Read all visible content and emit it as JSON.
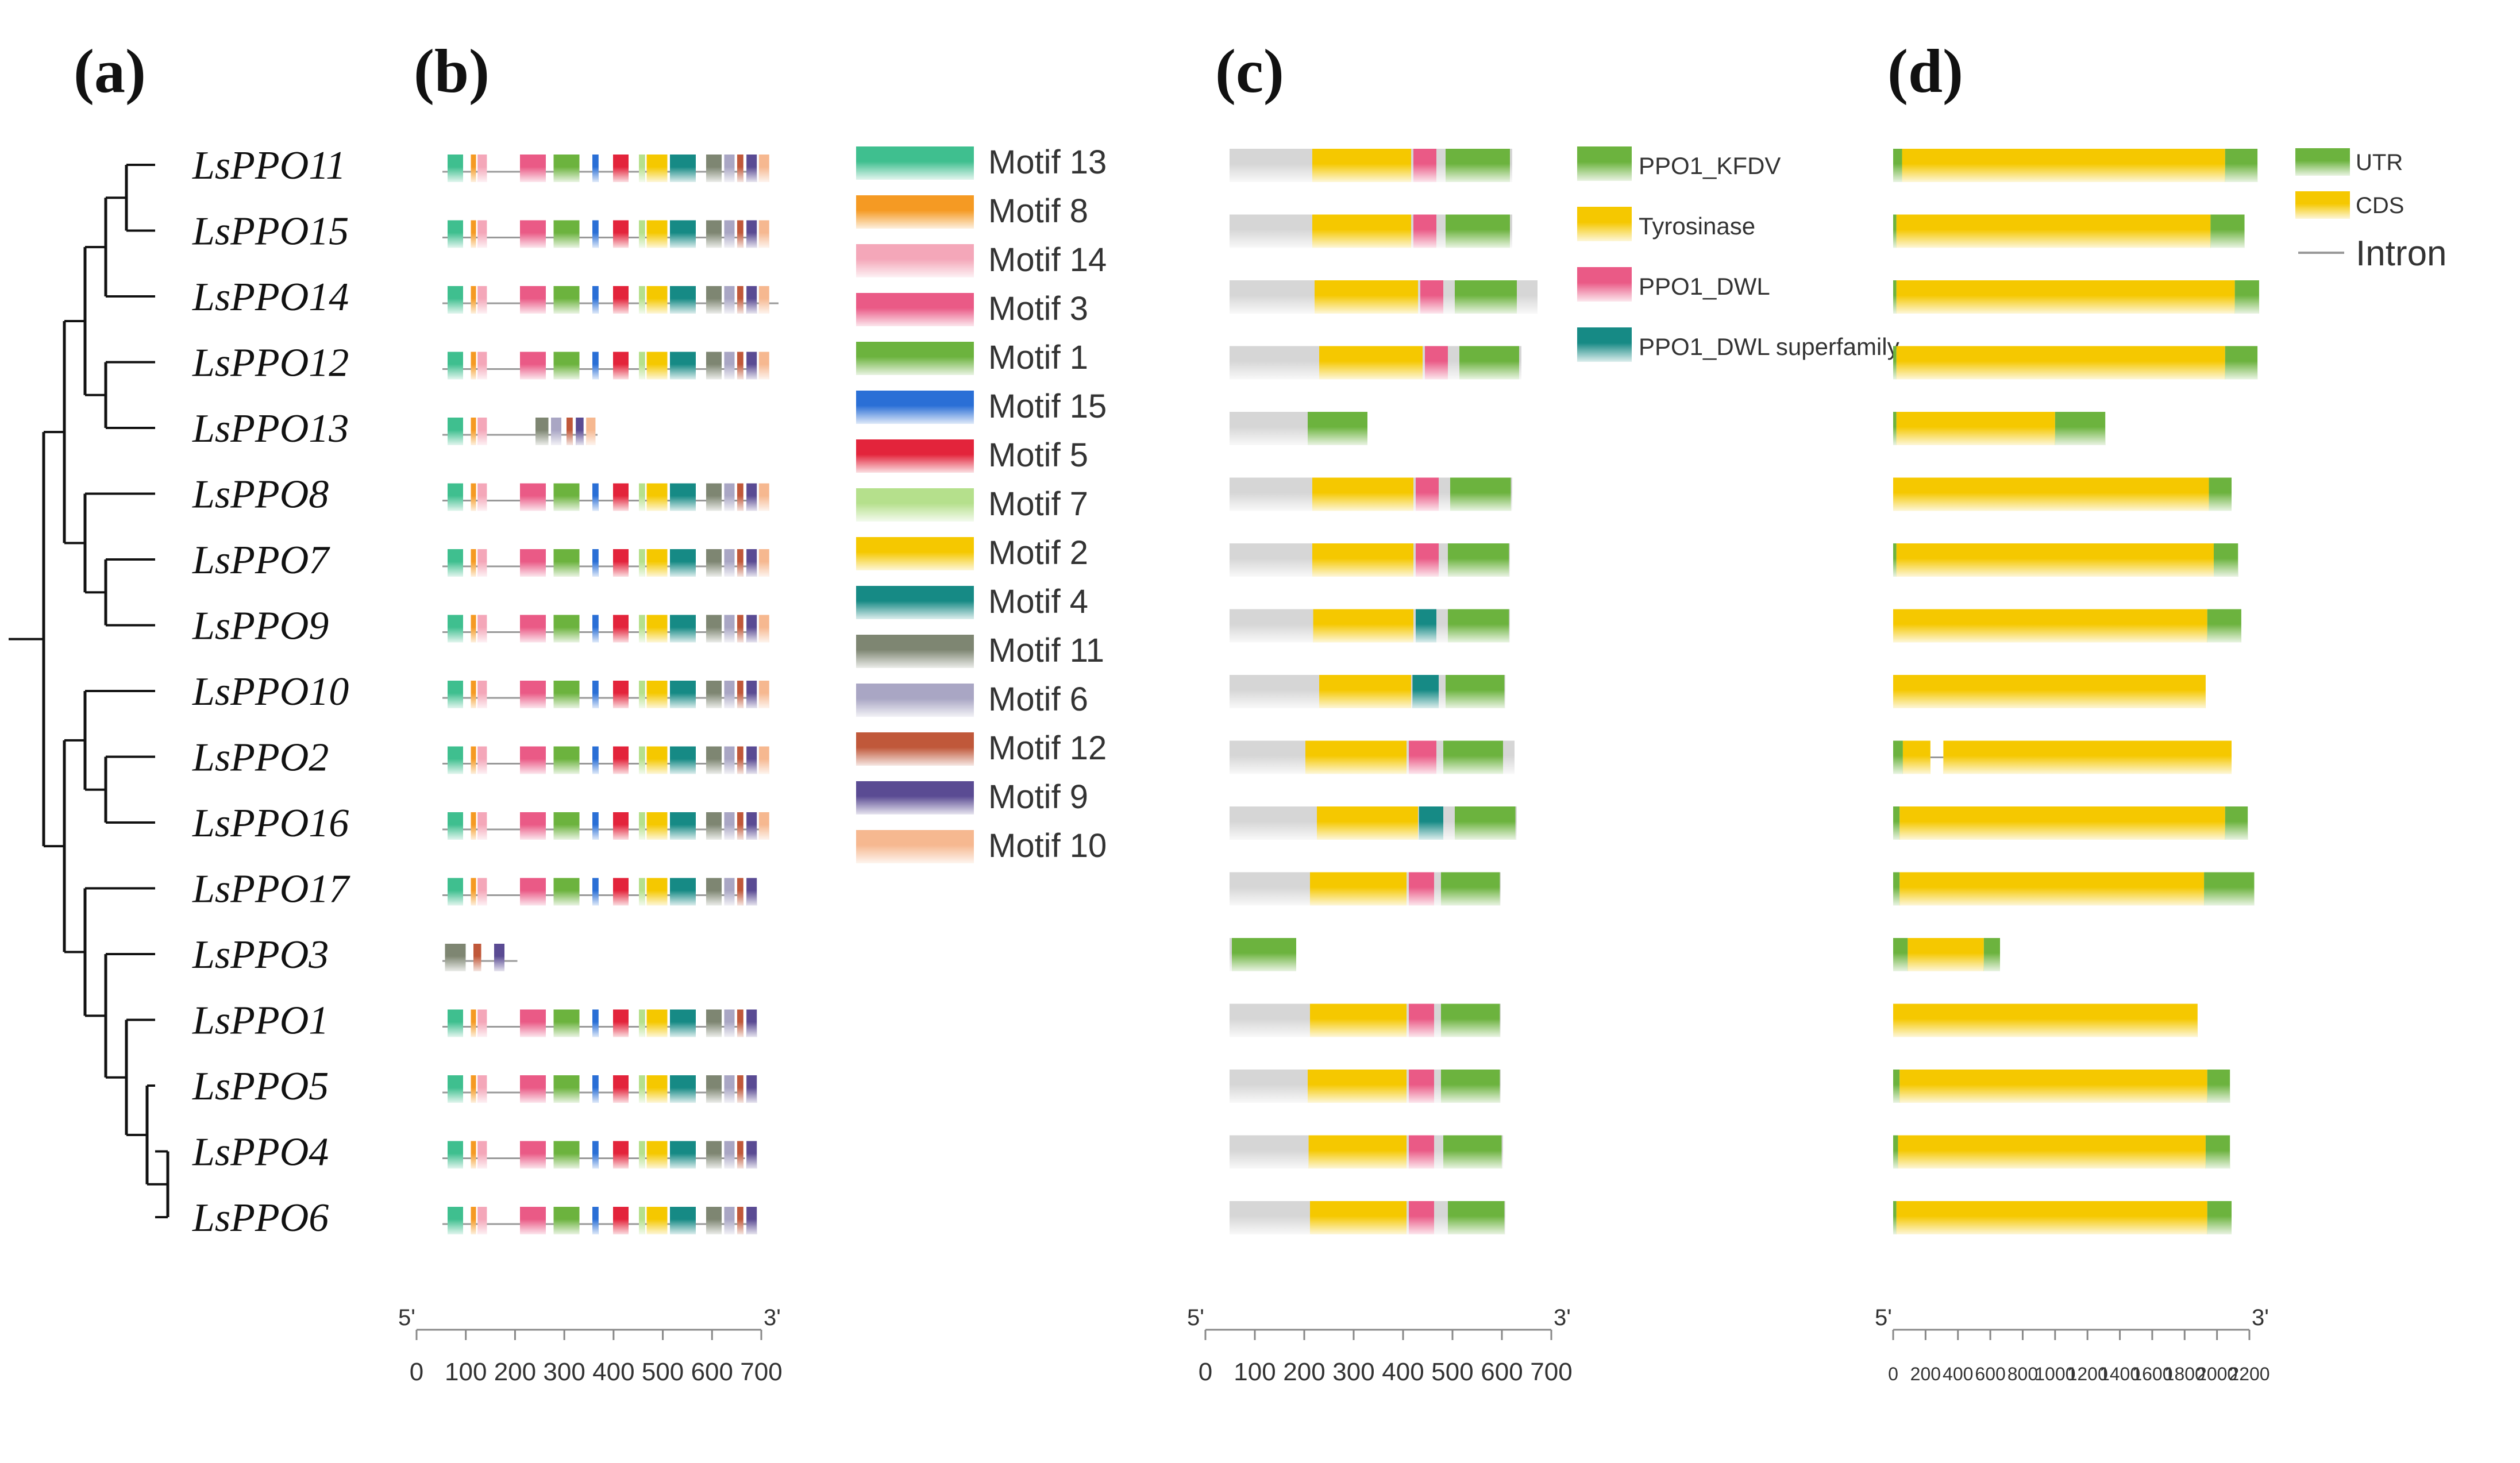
{
  "panels": {
    "a": "(a)",
    "b": "(b)",
    "c": "(c)",
    "d": "(d)"
  },
  "genes": [
    "LsPPO11",
    "LsPPO15",
    "LsPPO14",
    "LsPPO12",
    "LsPPO13",
    "LsPPO8",
    "LsPPO7",
    "LsPPO9",
    "LsPPO10",
    "LsPPO2",
    "LsPPO16",
    "LsPPO17",
    "LsPPO3",
    "LsPPO1",
    "LsPPO5",
    "LsPPO4",
    "LsPPO6"
  ],
  "tree": {
    "root": {
      "children": [
        {
          "children": [
            {
              "children": [
                {
                  "children": [
                    {
                      "children": [
                        {
                          "leaf": 0
                        },
                        {
                          "leaf": 1
                        }
                      ]
                    },
                    {
                      "leaf": 2
                    }
                  ]
                },
                {
                  "children": [
                    {
                      "leaf": 3
                    },
                    {
                      "leaf": 4
                    }
                  ]
                }
              ]
            },
            {
              "children": [
                {
                  "leaf": 5
                },
                {
                  "children": [
                    {
                      "leaf": 6
                    },
                    {
                      "leaf": 7
                    }
                  ]
                }
              ]
            }
          ]
        },
        {
          "children": [
            {
              "children": [
                {
                  "leaf": 8
                },
                {
                  "children": [
                    {
                      "leaf": 9
                    },
                    {
                      "leaf": 10
                    }
                  ]
                }
              ]
            },
            {
              "children": [
                {
                  "leaf": 11
                },
                {
                  "children": [
                    {
                      "leaf": 12
                    },
                    {
                      "children": [
                        {
                          "leaf": 13
                        },
                        {
                          "children": [
                            {
                              "leaf": 14
                            },
                            {
                              "children": [
                                {
                                  "leaf": 15
                                },
                                {
                                  "leaf": 16
                                }
                              ]
                            }
                          ]
                        }
                      ]
                    }
                  ]
                }
              ]
            }
          ]
        }
      ]
    }
  },
  "motif_legend": [
    {
      "label": "Motif 13",
      "color": "#3fbf8f"
    },
    {
      "label": "Motif 8",
      "color": "#f59a23"
    },
    {
      "label": "Motif 14",
      "color": "#f4a7b9"
    },
    {
      "label": "Motif 3",
      "color": "#ea5a86"
    },
    {
      "label": "Motif 1",
      "color": "#6cb33e"
    },
    {
      "label": "Motif 15",
      "color": "#2a6fd6"
    },
    {
      "label": "Motif 5",
      "color": "#e3243b"
    },
    {
      "label": "Motif 7",
      "color": "#b5e08c"
    },
    {
      "label": "Motif 2",
      "color": "#f5c800"
    },
    {
      "label": "Motif 4",
      "color": "#168a85"
    },
    {
      "label": "Motif 11",
      "color": "#7e8672"
    },
    {
      "label": "Motif 6",
      "color": "#a9a6c4"
    },
    {
      "label": "Motif 12",
      "color": "#c0583a"
    },
    {
      "label": "Motif 9",
      "color": "#5a4b93"
    },
    {
      "label": "Motif 10",
      "color": "#f6b890"
    }
  ],
  "motif_data": {
    "lengths": [
      592,
      595,
      650,
      600,
      300,
      600,
      595,
      595,
      592,
      600,
      620,
      580,
      145,
      580,
      580,
      585,
      590
    ],
    "full_pattern": [
      {
        "m": "Motif 13",
        "s": 10,
        "w": 30
      },
      {
        "m": "Motif 8",
        "s": 55,
        "w": 10
      },
      {
        "m": "Motif 14",
        "s": 68,
        "w": 18
      },
      {
        "m": "Motif 3",
        "s": 150,
        "w": 50
      },
      {
        "m": "Motif 1",
        "s": 215,
        "w": 50
      },
      {
        "m": "Motif 15",
        "s": 290,
        "w": 12
      },
      {
        "m": "Motif 5",
        "s": 330,
        "w": 30
      },
      {
        "m": "Motif 7",
        "s": 380,
        "w": 12
      },
      {
        "m": "Motif 2",
        "s": 395,
        "w": 40
      },
      {
        "m": "Motif 4",
        "s": 440,
        "w": 50
      },
      {
        "m": "Motif 11",
        "s": 510,
        "w": 30
      },
      {
        "m": "Motif 6",
        "s": 545,
        "w": 20
      },
      {
        "m": "Motif 12",
        "s": 570,
        "w": 12
      },
      {
        "m": "Motif 9",
        "s": 588,
        "w": 20
      },
      {
        "m": "Motif 10",
        "s": 612,
        "w": 20
      }
    ],
    "short_pattern": [
      {
        "m": "Motif 13",
        "s": 10,
        "w": 30
      },
      {
        "m": "Motif 8",
        "s": 55,
        "w": 10
      },
      {
        "m": "Motif 14",
        "s": 68,
        "w": 18
      },
      {
        "m": "Motif 11",
        "s": 180,
        "w": 25
      },
      {
        "m": "Motif 6",
        "s": 210,
        "w": 20
      },
      {
        "m": "Motif 12",
        "s": 240,
        "w": 12
      },
      {
        "m": "Motif 9",
        "s": 258,
        "w": 15
      },
      {
        "m": "Motif 10",
        "s": 278,
        "w": 18
      }
    ],
    "ppo3_pattern": [
      {
        "m": "Motif 11",
        "s": 5,
        "w": 40
      },
      {
        "m": "Motif 12",
        "s": 60,
        "w": 15
      },
      {
        "m": "Motif 9",
        "s": 100,
        "w": 20
      }
    ],
    "axis": {
      "start": "5'",
      "end": "3'",
      "ticks": [
        "0",
        "100",
        "200",
        "300",
        "400",
        "500",
        "600",
        "700"
      ],
      "max": 700
    }
  },
  "domain_legend": [
    {
      "label": "PPO1_KFDV",
      "color": "#6cb33e"
    },
    {
      "label": "Tyrosinase",
      "color": "#f5c800"
    },
    {
      "label": "PPO1_DWL",
      "color": "#ea5a86"
    },
    {
      "label": "PPO1_DWL superfamily",
      "color": "#168a85"
    }
  ],
  "domain_data": {
    "rows": [
      {
        "len": 615,
        "doms": [
          {
            "d": "Tyrosinase",
            "s": 180,
            "e": 395
          },
          {
            "d": "PPO1_DWL",
            "s": 400,
            "e": 450
          },
          {
            "d": "PPO1_KFDV",
            "s": 470,
            "e": 610
          }
        ]
      },
      {
        "len": 615,
        "doms": [
          {
            "d": "Tyrosinase",
            "s": 180,
            "e": 395
          },
          {
            "d": "PPO1_DWL",
            "s": 400,
            "e": 450
          },
          {
            "d": "PPO1_KFDV",
            "s": 470,
            "e": 610
          }
        ]
      },
      {
        "len": 670,
        "doms": [
          {
            "d": "Tyrosinase",
            "s": 185,
            "e": 410
          },
          {
            "d": "PPO1_DWL",
            "s": 415,
            "e": 465
          },
          {
            "d": "PPO1_KFDV",
            "s": 490,
            "e": 625
          }
        ]
      },
      {
        "len": 635,
        "doms": [
          {
            "d": "Tyrosinase",
            "s": 195,
            "e": 420
          },
          {
            "d": "PPO1_DWL",
            "s": 425,
            "e": 475
          },
          {
            "d": "PPO1_KFDV",
            "s": 500,
            "e": 630
          }
        ]
      },
      {
        "len": 300,
        "doms": [
          {
            "d": "PPO1_KFDV",
            "s": 170,
            "e": 300
          }
        ]
      },
      {
        "len": 615,
        "doms": [
          {
            "d": "Tyrosinase",
            "s": 180,
            "e": 400
          },
          {
            "d": "PPO1_DWL",
            "s": 405,
            "e": 455
          },
          {
            "d": "PPO1_KFDV",
            "s": 480,
            "e": 612
          }
        ]
      },
      {
        "len": 610,
        "doms": [
          {
            "d": "Tyrosinase",
            "s": 180,
            "e": 400
          },
          {
            "d": "PPO1_DWL",
            "s": 405,
            "e": 455
          },
          {
            "d": "PPO1_KFDV",
            "s": 475,
            "e": 608
          }
        ]
      },
      {
        "len": 610,
        "doms": [
          {
            "d": "Tyrosinase",
            "s": 182,
            "e": 400
          },
          {
            "d": "PPO1_DWL superfamily",
            "s": 405,
            "e": 450
          },
          {
            "d": "PPO1_KFDV",
            "s": 475,
            "e": 608
          }
        ]
      },
      {
        "len": 600,
        "doms": [
          {
            "d": "Tyrosinase",
            "s": 195,
            "e": 395
          },
          {
            "d": "PPO1_DWL superfamily",
            "s": 398,
            "e": 455
          },
          {
            "d": "PPO1_KFDV",
            "s": 470,
            "e": 598
          }
        ]
      },
      {
        "len": 620,
        "doms": [
          {
            "d": "Tyrosinase",
            "s": 165,
            "e": 385
          },
          {
            "d": "PPO1_DWL",
            "s": 390,
            "e": 450
          },
          {
            "d": "PPO1_KFDV",
            "s": 465,
            "e": 595
          }
        ]
      },
      {
        "len": 625,
        "doms": [
          {
            "d": "Tyrosinase",
            "s": 190,
            "e": 410
          },
          {
            "d": "PPO1_DWL superfamily",
            "s": 412,
            "e": 465
          },
          {
            "d": "PPO1_KFDV",
            "s": 490,
            "e": 622
          }
        ]
      },
      {
        "len": 590,
        "doms": [
          {
            "d": "Tyrosinase",
            "s": 175,
            "e": 385
          },
          {
            "d": "PPO1_DWL",
            "s": 390,
            "e": 445
          },
          {
            "d": "PPO1_KFDV",
            "s": 460,
            "e": 588
          }
        ]
      },
      {
        "len": 145,
        "doms": [
          {
            "d": "PPO1_KFDV",
            "s": 5,
            "e": 145
          }
        ]
      },
      {
        "len": 590,
        "doms": [
          {
            "d": "Tyrosinase",
            "s": 175,
            "e": 385
          },
          {
            "d": "PPO1_DWL",
            "s": 390,
            "e": 445
          },
          {
            "d": "PPO1_KFDV",
            "s": 460,
            "e": 588
          }
        ]
      },
      {
        "len": 590,
        "doms": [
          {
            "d": "Tyrosinase",
            "s": 170,
            "e": 385
          },
          {
            "d": "PPO1_DWL",
            "s": 390,
            "e": 445
          },
          {
            "d": "PPO1_KFDV",
            "s": 460,
            "e": 588
          }
        ]
      },
      {
        "len": 595,
        "doms": [
          {
            "d": "Tyrosinase",
            "s": 172,
            "e": 385
          },
          {
            "d": "PPO1_DWL",
            "s": 390,
            "e": 445
          },
          {
            "d": "PPO1_KFDV",
            "s": 465,
            "e": 592
          }
        ]
      },
      {
        "len": 600,
        "doms": [
          {
            "d": "Tyrosinase",
            "s": 175,
            "e": 385
          },
          {
            "d": "PPO1_DWL",
            "s": 390,
            "e": 445
          },
          {
            "d": "PPO1_KFDV",
            "s": 475,
            "e": 598
          }
        ]
      }
    ],
    "axis": {
      "start": "5'",
      "end": "3'",
      "ticks": [
        "0",
        "100",
        "200",
        "300",
        "400",
        "500",
        "600",
        "700"
      ],
      "max": 700
    }
  },
  "gene_legend": [
    {
      "label": "UTR",
      "color": "#6cb33e",
      "kind": "box"
    },
    {
      "label": "CDS",
      "color": "#f5c800",
      "kind": "box"
    },
    {
      "label": "Intron",
      "color": "#999999",
      "kind": "line"
    }
  ],
  "gene_data": {
    "rows": [
      {
        "utr5": [
          0,
          55
        ],
        "cds": [
          55,
          2050
        ],
        "utr3": [
          2050,
          2250
        ]
      },
      {
        "utr5": [
          0,
          20
        ],
        "cds": [
          20,
          1960
        ],
        "utr3": [
          1960,
          2170
        ]
      },
      {
        "utr5": [
          0,
          20
        ],
        "cds": [
          20,
          2110
        ],
        "utr3": [
          2110,
          2260
        ]
      },
      {
        "utr5": [
          0,
          20
        ],
        "cds": [
          20,
          2050
        ],
        "utr3": [
          2050,
          2250
        ]
      },
      {
        "utr5": [
          0,
          20
        ],
        "cds": [
          20,
          1000
        ],
        "utr3": [
          1000,
          1310
        ]
      },
      {
        "utr5": [
          0,
          0
        ],
        "cds": [
          0,
          1950
        ],
        "utr3": [
          1950,
          2090
        ]
      },
      {
        "utr5": [
          0,
          20
        ],
        "cds": [
          20,
          1980
        ],
        "utr3": [
          1980,
          2130
        ]
      },
      {
        "utr5": [
          0,
          0
        ],
        "cds": [
          0,
          1940
        ],
        "utr3": [
          1940,
          2150
        ]
      },
      {
        "utr5": [
          0,
          0
        ],
        "cds": [
          0,
          1930
        ],
        "utr3": [
          1930,
          1930
        ]
      },
      {
        "utr5": [
          0,
          60
        ],
        "cds": [
          60,
          2090
        ],
        "utr3": [
          2090,
          2090
        ],
        "intron": [
          230,
          310
        ]
      },
      {
        "utr5": [
          0,
          40
        ],
        "cds": [
          40,
          2050
        ],
        "utr3": [
          2050,
          2190
        ]
      },
      {
        "utr5": [
          0,
          40
        ],
        "cds": [
          40,
          1920
        ],
        "utr3": [
          1920,
          2230
        ]
      },
      {
        "utr5": [
          0,
          90
        ],
        "cds": [
          90,
          560
        ],
        "utr3": [
          560,
          660
        ]
      },
      {
        "utr5": [
          0,
          0
        ],
        "cds": [
          0,
          1880
        ],
        "utr3": [
          1880,
          1880
        ]
      },
      {
        "utr5": [
          0,
          40
        ],
        "cds": [
          40,
          1940
        ],
        "utr3": [
          1940,
          2080
        ]
      },
      {
        "utr5": [
          0,
          30
        ],
        "cds": [
          30,
          1930
        ],
        "utr3": [
          1930,
          2080
        ]
      },
      {
        "utr5": [
          0,
          20
        ],
        "cds": [
          20,
          1940
        ],
        "utr3": [
          1940,
          2090
        ]
      }
    ],
    "axis": {
      "start": "5'",
      "end": "3'",
      "ticks": [
        "0",
        "200",
        "400",
        "600",
        "800",
        "1000",
        "1200",
        "1400",
        "1600",
        "1800",
        "2000",
        "2200"
      ],
      "max": 2200
    }
  }
}
